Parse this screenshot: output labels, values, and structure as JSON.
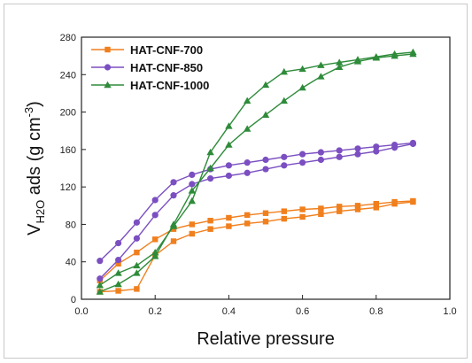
{
  "chart_data": {
    "type": "line",
    "xlabel": "Relative pressure",
    "ylabel": {
      "main": "V",
      "sub": "H2O",
      "rest": " ads (g cm",
      "sup": "-3",
      "end": ")"
    },
    "xlim": [
      0.0,
      1.0
    ],
    "ylim": [
      0,
      280
    ],
    "xticks": [
      "0.0",
      "0.2",
      "0.4",
      "0.6",
      "0.8",
      "1.0"
    ],
    "yticks": [
      "0",
      "40",
      "80",
      "120",
      "160",
      "200",
      "240",
      "280"
    ],
    "grid": false,
    "legend_position": "top-left",
    "series": [
      {
        "name": "HAT-CNF-700",
        "color": "#f07f1d",
        "marker": "square",
        "adsorption": {
          "x": [
            0.05,
            0.1,
            0.15,
            0.2,
            0.25,
            0.3,
            0.35,
            0.4,
            0.45,
            0.5,
            0.55,
            0.6,
            0.65,
            0.7,
            0.75,
            0.8,
            0.85,
            0.9
          ],
          "y": [
            8,
            9,
            11,
            47,
            62,
            70,
            75,
            78,
            81,
            83,
            86,
            88,
            91,
            94,
            96,
            98,
            102,
            104
          ]
        },
        "desorption": {
          "x": [
            0.9,
            0.85,
            0.8,
            0.75,
            0.7,
            0.65,
            0.6,
            0.55,
            0.5,
            0.45,
            0.4,
            0.35,
            0.3,
            0.25,
            0.2,
            0.15,
            0.1,
            0.05
          ],
          "y": [
            105,
            104,
            102,
            100,
            99,
            97,
            96,
            94,
            92,
            90,
            87,
            84,
            80,
            75,
            64,
            50,
            38,
            20
          ]
        }
      },
      {
        "name": "HAT-CNF-850",
        "color": "#7b4fc1",
        "marker": "circle",
        "adsorption": {
          "x": [
            0.05,
            0.1,
            0.15,
            0.2,
            0.25,
            0.3,
            0.35,
            0.4,
            0.45,
            0.5,
            0.55,
            0.6,
            0.65,
            0.7,
            0.75,
            0.8,
            0.85,
            0.9
          ],
          "y": [
            22,
            42,
            65,
            90,
            111,
            123,
            129,
            132,
            135,
            139,
            143,
            146,
            149,
            152,
            155,
            158,
            162,
            166
          ]
        },
        "desorption": {
          "x": [
            0.9,
            0.85,
            0.8,
            0.75,
            0.7,
            0.65,
            0.6,
            0.55,
            0.5,
            0.45,
            0.4,
            0.35,
            0.3,
            0.25,
            0.2,
            0.15,
            0.1,
            0.05
          ],
          "y": [
            167,
            165,
            163,
            161,
            159,
            157,
            155,
            152,
            149,
            146,
            143,
            139,
            133,
            125,
            106,
            82,
            60,
            41
          ]
        }
      },
      {
        "name": "HAT-CNF-1000",
        "color": "#2e8b3a",
        "marker": "triangle",
        "adsorption": {
          "x": [
            0.05,
            0.1,
            0.15,
            0.2,
            0.25,
            0.3,
            0.35,
            0.4,
            0.45,
            0.5,
            0.55,
            0.6,
            0.65,
            0.7,
            0.75,
            0.8,
            0.85,
            0.9
          ],
          "y": [
            8,
            16,
            28,
            46,
            80,
            116,
            140,
            165,
            182,
            197,
            212,
            226,
            238,
            248,
            254,
            258,
            260,
            262
          ]
        },
        "desorption": {
          "x": [
            0.9,
            0.85,
            0.8,
            0.75,
            0.7,
            0.65,
            0.6,
            0.55,
            0.5,
            0.45,
            0.4,
            0.35,
            0.3,
            0.25,
            0.2,
            0.15,
            0.1,
            0.05
          ],
          "y": [
            264,
            262,
            259,
            256,
            253,
            250,
            246,
            243,
            229,
            212,
            185,
            157,
            105,
            78,
            50,
            36,
            28,
            15
          ]
        }
      }
    ]
  }
}
